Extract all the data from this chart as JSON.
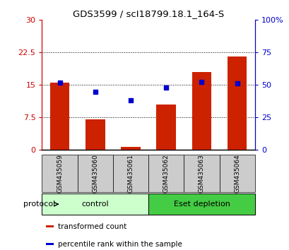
{
  "title": "GDS3599 / scI18799.18.1_164-S",
  "categories": [
    "GSM435059",
    "GSM435060",
    "GSM435061",
    "GSM435062",
    "GSM435063",
    "GSM435064"
  ],
  "red_values": [
    15.5,
    7.0,
    0.7,
    10.5,
    18.0,
    21.5
  ],
  "blue_values_pct": [
    52.0,
    45.0,
    38.0,
    48.0,
    52.5,
    51.5
  ],
  "left_ylim": [
    0,
    30
  ],
  "right_ylim": [
    0,
    100
  ],
  "left_yticks": [
    0,
    7.5,
    15,
    22.5,
    30
  ],
  "right_yticks": [
    0,
    25,
    50,
    75,
    100
  ],
  "right_yticklabels": [
    "0",
    "25",
    "50",
    "75",
    "100%"
  ],
  "left_color": "#cc0000",
  "right_color": "#0000cc",
  "bar_color": "#cc2200",
  "dot_color": "#0000cc",
  "protocol_groups": [
    {
      "label": "control",
      "start": 0,
      "end": 3,
      "color": "#ccffcc"
    },
    {
      "label": "Eset depletion",
      "start": 3,
      "end": 6,
      "color": "#44cc44"
    }
  ],
  "legend_items": [
    {
      "label": "transformed count",
      "color": "#cc2200"
    },
    {
      "label": "percentile rank within the sample",
      "color": "#0000cc"
    }
  ],
  "protocol_label": "protocol",
  "bar_width": 0.55,
  "xtick_bg_color": "#cccccc",
  "fig_width": 4.1,
  "fig_height": 3.54,
  "dpi": 100
}
